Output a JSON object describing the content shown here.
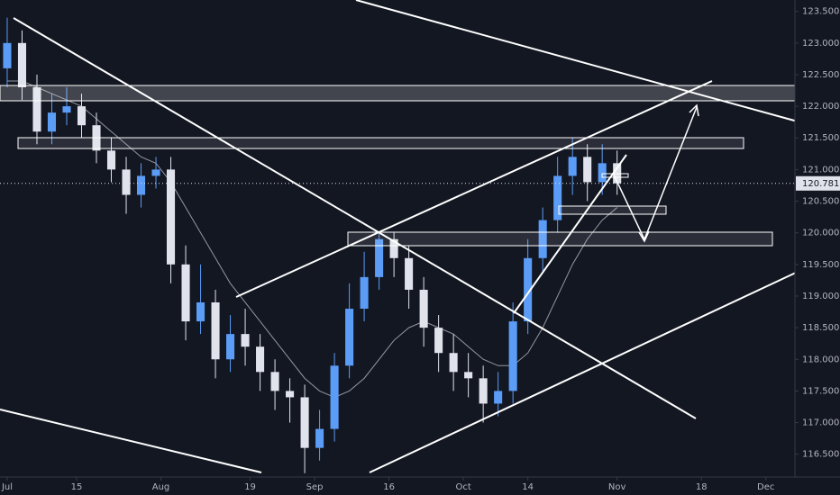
{
  "chart_data": {
    "type": "candlestick",
    "xticks": [
      {
        "value": 0,
        "label": "Jul"
      },
      {
        "value": 14,
        "label": "15"
      },
      {
        "value": 31,
        "label": "Aug"
      },
      {
        "value": 49,
        "label": "19"
      },
      {
        "value": 62,
        "label": "Sep"
      },
      {
        "value": 77,
        "label": "16"
      },
      {
        "value": 92,
        "label": "Oct"
      },
      {
        "value": 105,
        "label": "14"
      },
      {
        "value": 123,
        "label": "Nov"
      },
      {
        "value": 140,
        "label": "18"
      },
      {
        "value": 153,
        "label": "Dec"
      }
    ],
    "xlim": [
      -1.45,
      158.5
    ],
    "ylim": [
      116.14,
      123.68
    ],
    "yticks": [
      {
        "value": 116.5,
        "label": "116.500"
      },
      {
        "value": 117,
        "label": "117.000"
      },
      {
        "value": 117.5,
        "label": "117.500"
      },
      {
        "value": 118,
        "label": "118.000"
      },
      {
        "value": 118.5,
        "label": "118.500"
      },
      {
        "value": 119,
        "label": "119.000"
      },
      {
        "value": 119.5,
        "label": "119.500"
      },
      {
        "value": 120,
        "label": "120.000"
      },
      {
        "value": 120.5,
        "label": "120.500"
      },
      {
        "value": 121,
        "label": "121.000"
      },
      {
        "value": 121.5,
        "label": "121.500"
      },
      {
        "value": 122,
        "label": "122.000"
      },
      {
        "value": 122.5,
        "label": "122.500"
      },
      {
        "value": 123,
        "label": "123.000"
      },
      {
        "value": 123.5,
        "label": "123.500"
      }
    ],
    "x": [
      0,
      3,
      6,
      9,
      12,
      15,
      18,
      21,
      24,
      27,
      30,
      33,
      36,
      39,
      42,
      45,
      48,
      51,
      54,
      57,
      60,
      63,
      66,
      69,
      72,
      75,
      78,
      81,
      84,
      87,
      90,
      93,
      96,
      99,
      102,
      105,
      108,
      111,
      114,
      117,
      120,
      123
    ],
    "open": [
      122.6,
      123.0,
      122.3,
      121.6,
      121.9,
      122.0,
      121.7,
      121.3,
      121.0,
      120.6,
      120.9,
      121.0,
      119.5,
      118.6,
      118.9,
      118.0,
      118.4,
      118.2,
      117.8,
      117.5,
      117.4,
      116.6,
      116.9,
      117.9,
      118.8,
      119.3,
      119.9,
      119.6,
      119.1,
      118.5,
      118.1,
      117.8,
      117.7,
      117.3,
      117.5,
      118.6,
      119.6,
      120.2,
      120.9,
      121.2,
      120.8,
      121.1
    ],
    "high": [
      123.4,
      123.2,
      122.5,
      122.2,
      122.3,
      122.2,
      121.9,
      121.5,
      121.2,
      121.1,
      121.2,
      121.2,
      119.8,
      119.5,
      119.1,
      118.7,
      118.8,
      118.4,
      118.0,
      117.7,
      117.6,
      117.2,
      118.1,
      119.2,
      119.7,
      120.0,
      120.0,
      119.8,
      119.3,
      118.7,
      118.4,
      118.1,
      117.9,
      117.8,
      118.9,
      119.9,
      120.4,
      121.2,
      121.5,
      121.4,
      121.4,
      121.3
    ],
    "low": [
      122.3,
      122.1,
      121.4,
      121.4,
      121.7,
      121.5,
      121.1,
      120.8,
      120.3,
      120.4,
      120.7,
      119.2,
      118.3,
      118.4,
      117.7,
      117.8,
      117.9,
      117.5,
      117.2,
      117.0,
      116.2,
      116.4,
      116.7,
      117.7,
      118.6,
      119.1,
      119.3,
      118.8,
      118.2,
      117.8,
      117.5,
      117.4,
      117.0,
      117.1,
      117.3,
      118.4,
      119.4,
      120.0,
      120.6,
      120.5,
      120.6,
      120.6
    ],
    "close": [
      123.0,
      122.3,
      121.6,
      121.9,
      122.0,
      121.7,
      121.3,
      121.0,
      120.6,
      120.9,
      121.0,
      119.5,
      118.6,
      118.9,
      118.0,
      118.4,
      118.2,
      117.8,
      117.5,
      117.4,
      116.6,
      116.9,
      117.9,
      118.8,
      119.3,
      119.9,
      119.6,
      119.1,
      118.5,
      118.1,
      117.8,
      117.7,
      117.3,
      117.5,
      118.6,
      119.6,
      120.2,
      120.9,
      121.2,
      120.8,
      121.1,
      120.781
    ],
    "up_color": "#5b9cf6",
    "down_color": "#e0e3eb",
    "overlays": [
      {
        "color": "#9598a1",
        "values": [
          122.4,
          122.4,
          122.3,
          122.2,
          122.1,
          122.0,
          121.8,
          121.6,
          121.4,
          121.2,
          121.1,
          120.8,
          120.4,
          120.0,
          119.6,
          119.2,
          118.9,
          118.6,
          118.3,
          118.0,
          117.7,
          117.5,
          117.4,
          117.5,
          117.7,
          118.0,
          118.3,
          118.5,
          118.6,
          118.5,
          118.4,
          118.2,
          118.0,
          117.9,
          117.9,
          118.1,
          118.5,
          119.0,
          119.5,
          119.9,
          120.2,
          120.4
        ]
      }
    ],
    "last_price": 120.781
  }
}
